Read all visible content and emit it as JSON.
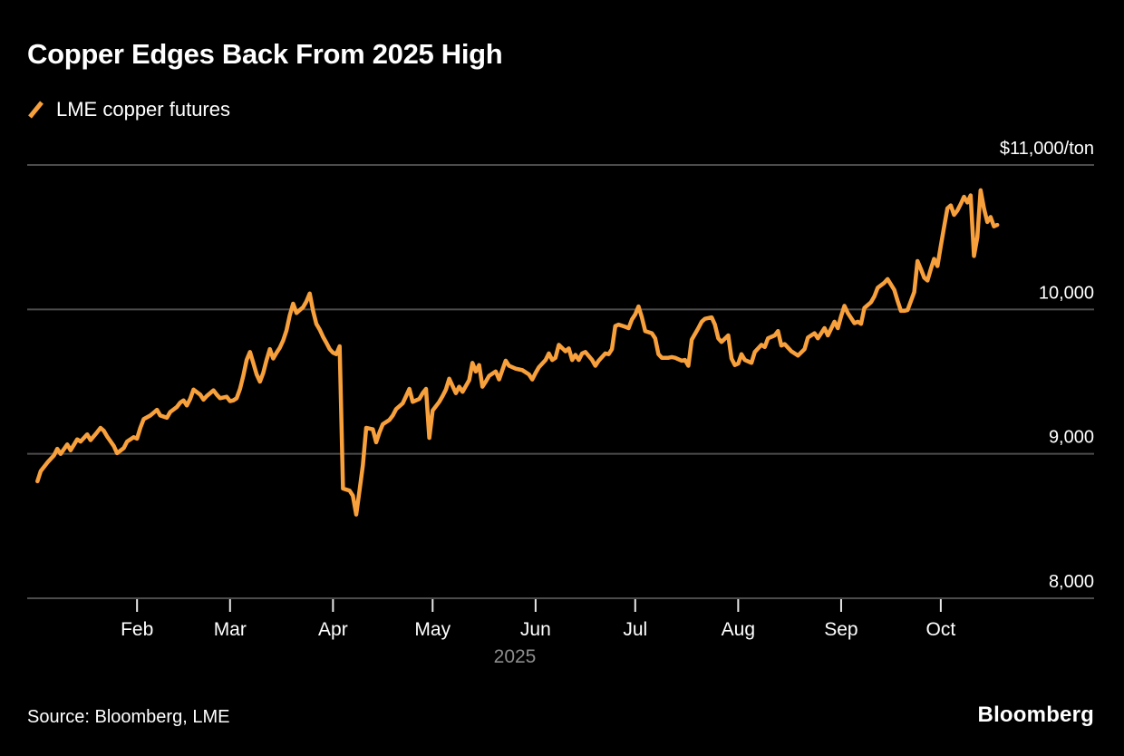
{
  "header": {
    "title": "Copper Edges Back From 2025 High"
  },
  "legend": {
    "label": "LME copper futures",
    "swatch_color": "#F8A03C"
  },
  "footer": {
    "source": "Source: Bloomberg, LME",
    "logo": "Bloomberg"
  },
  "chart_data": {
    "type": "line",
    "title": "Copper Edges Back From 2025 High",
    "series_name": "LME copper futures",
    "unit": "USD per ton",
    "line_color": "#F8A03C",
    "grid": "horizontal",
    "legend_position": "top-left",
    "x_unit": "days_since_2025-01-01",
    "x_domain_days": [
      -2,
      319
    ],
    "ylim": [
      8000,
      11000
    ],
    "x_axis_year_label": "2025",
    "yticks": [
      {
        "value": 11000,
        "label": "$11,000/ton"
      },
      {
        "value": 10000,
        "label": "10,000"
      },
      {
        "value": 9000,
        "label": "9,000"
      },
      {
        "value": 8000,
        "label": "8,000"
      }
    ],
    "xticks": [
      {
        "label": "Feb",
        "day": 31
      },
      {
        "label": "Mar",
        "day": 59
      },
      {
        "label": "Apr",
        "day": 90
      },
      {
        "label": "May",
        "day": 120
      },
      {
        "label": "Jun",
        "day": 151
      },
      {
        "label": "Jul",
        "day": 181
      },
      {
        "label": "Aug",
        "day": 212
      },
      {
        "label": "Sep",
        "day": 243
      },
      {
        "label": "Oct",
        "day": 273
      }
    ],
    "points": [
      [
        1,
        8810
      ],
      [
        2,
        8880
      ],
      [
        4,
        8940
      ],
      [
        6,
        8990
      ],
      [
        7,
        9035
      ],
      [
        8,
        9000
      ],
      [
        10,
        9065
      ],
      [
        11,
        9025
      ],
      [
        13,
        9100
      ],
      [
        14,
        9085
      ],
      [
        16,
        9135
      ],
      [
        17,
        9095
      ],
      [
        19,
        9150
      ],
      [
        20,
        9180
      ],
      [
        21,
        9160
      ],
      [
        22,
        9120
      ],
      [
        24,
        9055
      ],
      [
        25,
        9005
      ],
      [
        27,
        9040
      ],
      [
        28,
        9085
      ],
      [
        30,
        9115
      ],
      [
        31,
        9105
      ],
      [
        32,
        9180
      ],
      [
        33,
        9240
      ],
      [
        35,
        9265
      ],
      [
        36,
        9285
      ],
      [
        37,
        9305
      ],
      [
        38,
        9265
      ],
      [
        40,
        9250
      ],
      [
        41,
        9290
      ],
      [
        43,
        9325
      ],
      [
        44,
        9355
      ],
      [
        45,
        9370
      ],
      [
        46,
        9335
      ],
      [
        47,
        9380
      ],
      [
        48,
        9445
      ],
      [
        50,
        9410
      ],
      [
        51,
        9375
      ],
      [
        52,
        9400
      ],
      [
        54,
        9440
      ],
      [
        55,
        9410
      ],
      [
        56,
        9385
      ],
      [
        58,
        9395
      ],
      [
        59,
        9365
      ],
      [
        60,
        9370
      ],
      [
        61,
        9385
      ],
      [
        62,
        9450
      ],
      [
        63,
        9540
      ],
      [
        64,
        9650
      ],
      [
        65,
        9705
      ],
      [
        66,
        9630
      ],
      [
        67,
        9550
      ],
      [
        68,
        9500
      ],
      [
        69,
        9560
      ],
      [
        70,
        9650
      ],
      [
        71,
        9725
      ],
      [
        72,
        9660
      ],
      [
        73,
        9700
      ],
      [
        74,
        9735
      ],
      [
        75,
        9785
      ],
      [
        76,
        9855
      ],
      [
        77,
        9960
      ],
      [
        78,
        10040
      ],
      [
        79,
        9975
      ],
      [
        80,
        9995
      ],
      [
        81,
        10015
      ],
      [
        82,
        10055
      ],
      [
        83,
        10110
      ],
      [
        84,
        9990
      ],
      [
        85,
        9900
      ],
      [
        86,
        9860
      ],
      [
        87,
        9810
      ],
      [
        88,
        9770
      ],
      [
        89,
        9725
      ],
      [
        90,
        9700
      ],
      [
        91,
        9690
      ],
      [
        92,
        9745
      ],
      [
        93,
        8760
      ],
      [
        95,
        8745
      ],
      [
        96,
        8710
      ],
      [
        97,
        8580
      ],
      [
        98,
        8750
      ],
      [
        99,
        8920
      ],
      [
        100,
        9180
      ],
      [
        101,
        9175
      ],
      [
        102,
        9170
      ],
      [
        103,
        9080
      ],
      [
        104,
        9150
      ],
      [
        105,
        9205
      ],
      [
        107,
        9235
      ],
      [
        108,
        9265
      ],
      [
        109,
        9310
      ],
      [
        111,
        9350
      ],
      [
        112,
        9400
      ],
      [
        113,
        9450
      ],
      [
        114,
        9360
      ],
      [
        116,
        9380
      ],
      [
        117,
        9420
      ],
      [
        118,
        9450
      ],
      [
        119,
        9110
      ],
      [
        120,
        9300
      ],
      [
        122,
        9360
      ],
      [
        123,
        9400
      ],
      [
        124,
        9445
      ],
      [
        125,
        9520
      ],
      [
        127,
        9420
      ],
      [
        128,
        9465
      ],
      [
        129,
        9430
      ],
      [
        131,
        9510
      ],
      [
        132,
        9630
      ],
      [
        133,
        9570
      ],
      [
        134,
        9615
      ],
      [
        135,
        9465
      ],
      [
        136,
        9500
      ],
      [
        137,
        9540
      ],
      [
        139,
        9570
      ],
      [
        140,
        9515
      ],
      [
        141,
        9580
      ],
      [
        142,
        9645
      ],
      [
        143,
        9610
      ],
      [
        145,
        9590
      ],
      [
        146,
        9585
      ],
      [
        147,
        9580
      ],
      [
        149,
        9550
      ],
      [
        150,
        9515
      ],
      [
        151,
        9560
      ],
      [
        152,
        9600
      ],
      [
        154,
        9650
      ],
      [
        155,
        9695
      ],
      [
        156,
        9650
      ],
      [
        157,
        9665
      ],
      [
        158,
        9755
      ],
      [
        160,
        9710
      ],
      [
        161,
        9730
      ],
      [
        162,
        9650
      ],
      [
        163,
        9685
      ],
      [
        164,
        9650
      ],
      [
        165,
        9695
      ],
      [
        166,
        9705
      ],
      [
        168,
        9650
      ],
      [
        169,
        9610
      ],
      [
        170,
        9645
      ],
      [
        172,
        9695
      ],
      [
        173,
        9690
      ],
      [
        174,
        9725
      ],
      [
        175,
        9885
      ],
      [
        176,
        9895
      ],
      [
        178,
        9880
      ],
      [
        179,
        9870
      ],
      [
        180,
        9930
      ],
      [
        181,
        9965
      ],
      [
        182,
        10020
      ],
      [
        183,
        9945
      ],
      [
        184,
        9850
      ],
      [
        186,
        9835
      ],
      [
        187,
        9800
      ],
      [
        188,
        9690
      ],
      [
        189,
        9665
      ],
      [
        191,
        9665
      ],
      [
        192,
        9670
      ],
      [
        193,
        9665
      ],
      [
        195,
        9645
      ],
      [
        196,
        9650
      ],
      [
        197,
        9610
      ],
      [
        198,
        9790
      ],
      [
        200,
        9870
      ],
      [
        201,
        9915
      ],
      [
        202,
        9935
      ],
      [
        204,
        9945
      ],
      [
        205,
        9895
      ],
      [
        206,
        9800
      ],
      [
        207,
        9775
      ],
      [
        209,
        9820
      ],
      [
        210,
        9660
      ],
      [
        211,
        9615
      ],
      [
        212,
        9625
      ],
      [
        213,
        9690
      ],
      [
        214,
        9650
      ],
      [
        216,
        9630
      ],
      [
        217,
        9705
      ],
      [
        219,
        9755
      ],
      [
        220,
        9740
      ],
      [
        221,
        9800
      ],
      [
        223,
        9820
      ],
      [
        224,
        9850
      ],
      [
        225,
        9750
      ],
      [
        226,
        9760
      ],
      [
        228,
        9710
      ],
      [
        229,
        9695
      ],
      [
        230,
        9680
      ],
      [
        232,
        9725
      ],
      [
        233,
        9805
      ],
      [
        235,
        9835
      ],
      [
        236,
        9800
      ],
      [
        238,
        9870
      ],
      [
        239,
        9820
      ],
      [
        241,
        9915
      ],
      [
        242,
        9870
      ],
      [
        243,
        9955
      ],
      [
        244,
        10025
      ],
      [
        245,
        9975
      ],
      [
        247,
        9905
      ],
      [
        248,
        9915
      ],
      [
        249,
        9900
      ],
      [
        250,
        10010
      ],
      [
        252,
        10050
      ],
      [
        253,
        10090
      ],
      [
        254,
        10150
      ],
      [
        256,
        10185
      ],
      [
        257,
        10210
      ],
      [
        259,
        10135
      ],
      [
        260,
        10060
      ],
      [
        261,
        9990
      ],
      [
        262,
        9990
      ],
      [
        263,
        9995
      ],
      [
        265,
        10120
      ],
      [
        266,
        10335
      ],
      [
        267,
        10280
      ],
      [
        268,
        10220
      ],
      [
        269,
        10200
      ],
      [
        270,
        10280
      ],
      [
        271,
        10350
      ],
      [
        272,
        10300
      ],
      [
        273,
        10440
      ],
      [
        274,
        10570
      ],
      [
        275,
        10700
      ],
      [
        276,
        10720
      ],
      [
        277,
        10655
      ],
      [
        278,
        10685
      ],
      [
        279,
        10730
      ],
      [
        280,
        10780
      ],
      [
        281,
        10740
      ],
      [
        282,
        10790
      ],
      [
        283,
        10370
      ],
      [
        284,
        10500
      ],
      [
        285,
        10825
      ],
      [
        286,
        10700
      ],
      [
        287,
        10605
      ],
      [
        288,
        10640
      ],
      [
        289,
        10575
      ],
      [
        290,
        10585
      ]
    ]
  }
}
